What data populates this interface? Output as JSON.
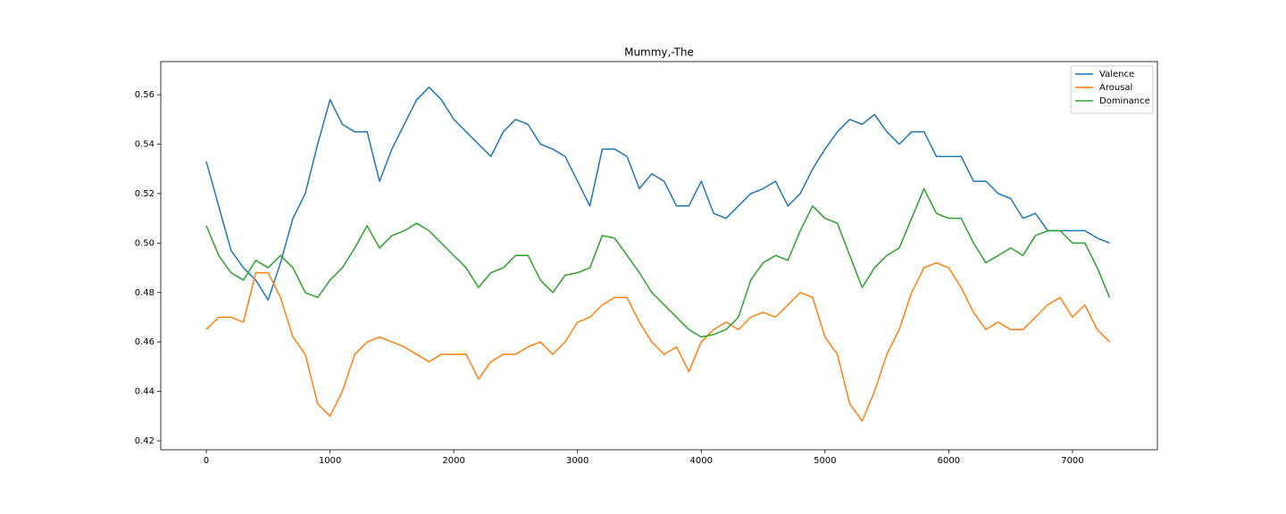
{
  "chart_data": {
    "type": "line",
    "title": "Mummy,-The",
    "x": [
      0,
      100,
      200,
      300,
      400,
      500,
      600,
      700,
      800,
      900,
      1000,
      1100,
      1200,
      1300,
      1400,
      1500,
      1600,
      1700,
      1800,
      1900,
      2000,
      2100,
      2200,
      2300,
      2400,
      2500,
      2600,
      2700,
      2800,
      2900,
      3000,
      3100,
      3200,
      3300,
      3400,
      3500,
      3600,
      3700,
      3800,
      3900,
      4000,
      4100,
      4200,
      4300,
      4400,
      4500,
      4600,
      4700,
      4800,
      4900,
      5000,
      5100,
      5200,
      5300,
      5400,
      5500,
      5600,
      5700,
      5800,
      5900,
      6000,
      6100,
      6200,
      6300,
      6400,
      6500,
      6600,
      6700,
      6800,
      6900,
      7000,
      7100,
      7200,
      7300
    ],
    "series": [
      {
        "name": "Valence",
        "color": "#1f77b4",
        "values": [
          0.533,
          0.515,
          0.497,
          0.49,
          0.485,
          0.477,
          0.492,
          0.51,
          0.52,
          0.54,
          0.558,
          0.548,
          0.545,
          0.545,
          0.525,
          0.538,
          0.548,
          0.558,
          0.563,
          0.558,
          0.55,
          0.545,
          0.54,
          0.535,
          0.545,
          0.55,
          0.548,
          0.54,
          0.538,
          0.535,
          0.525,
          0.515,
          0.538,
          0.538,
          0.535,
          0.522,
          0.528,
          0.525,
          0.515,
          0.515,
          0.525,
          0.512,
          0.51,
          0.515,
          0.52,
          0.522,
          0.525,
          0.515,
          0.52,
          0.53,
          0.538,
          0.545,
          0.55,
          0.548,
          0.552,
          0.545,
          0.54,
          0.545,
          0.545,
          0.535,
          0.535,
          0.535,
          0.525,
          0.525,
          0.52,
          0.518,
          0.51,
          0.512,
          0.505,
          0.505,
          0.505,
          0.505,
          0.502,
          0.5
        ]
      },
      {
        "name": "Arousal",
        "color": "#ff7f0e",
        "values": [
          0.465,
          0.47,
          0.47,
          0.468,
          0.488,
          0.488,
          0.478,
          0.462,
          0.455,
          0.435,
          0.43,
          0.44,
          0.455,
          0.46,
          0.462,
          0.46,
          0.458,
          0.455,
          0.452,
          0.455,
          0.455,
          0.455,
          0.445,
          0.452,
          0.455,
          0.455,
          0.458,
          0.46,
          0.455,
          0.46,
          0.468,
          0.47,
          0.475,
          0.478,
          0.478,
          0.468,
          0.46,
          0.455,
          0.458,
          0.448,
          0.46,
          0.465,
          0.468,
          0.465,
          0.47,
          0.472,
          0.47,
          0.475,
          0.48,
          0.478,
          0.462,
          0.455,
          0.435,
          0.428,
          0.44,
          0.455,
          0.465,
          0.48,
          0.49,
          0.492,
          0.49,
          0.482,
          0.472,
          0.465,
          0.468,
          0.465,
          0.465,
          0.47,
          0.475,
          0.478,
          0.47,
          0.475,
          0.465,
          0.46
        ]
      },
      {
        "name": "Dominance",
        "color": "#2ca02c",
        "values": [
          0.507,
          0.495,
          0.488,
          0.485,
          0.493,
          0.49,
          0.495,
          0.49,
          0.48,
          0.478,
          0.485,
          0.49,
          0.498,
          0.507,
          0.498,
          0.503,
          0.505,
          0.508,
          0.505,
          0.5,
          0.495,
          0.49,
          0.482,
          0.488,
          0.49,
          0.495,
          0.495,
          0.485,
          0.48,
          0.487,
          0.488,
          0.49,
          0.503,
          0.502,
          0.495,
          0.488,
          0.48,
          0.475,
          0.47,
          0.465,
          0.462,
          0.463,
          0.465,
          0.47,
          0.485,
          0.492,
          0.495,
          0.493,
          0.505,
          0.515,
          0.51,
          0.508,
          0.495,
          0.482,
          0.49,
          0.495,
          0.498,
          0.51,
          0.522,
          0.512,
          0.51,
          0.51,
          0.5,
          0.492,
          0.495,
          0.498,
          0.495,
          0.503,
          0.505,
          0.505,
          0.5,
          0.5,
          0.49,
          0.478
        ]
      }
    ],
    "xlim": [
      -368,
      7686
    ],
    "xticks": [
      0,
      1000,
      2000,
      3000,
      4000,
      5000,
      6000,
      7000
    ],
    "ylim": [
      0.4164,
      0.5734
    ],
    "yticks": [
      0.42,
      0.44,
      0.46,
      0.48,
      {
        "value": 0.5,
        "label": "0.50"
      },
      0.52,
      0.54,
      0.56
    ],
    "legend": "upper right"
  }
}
